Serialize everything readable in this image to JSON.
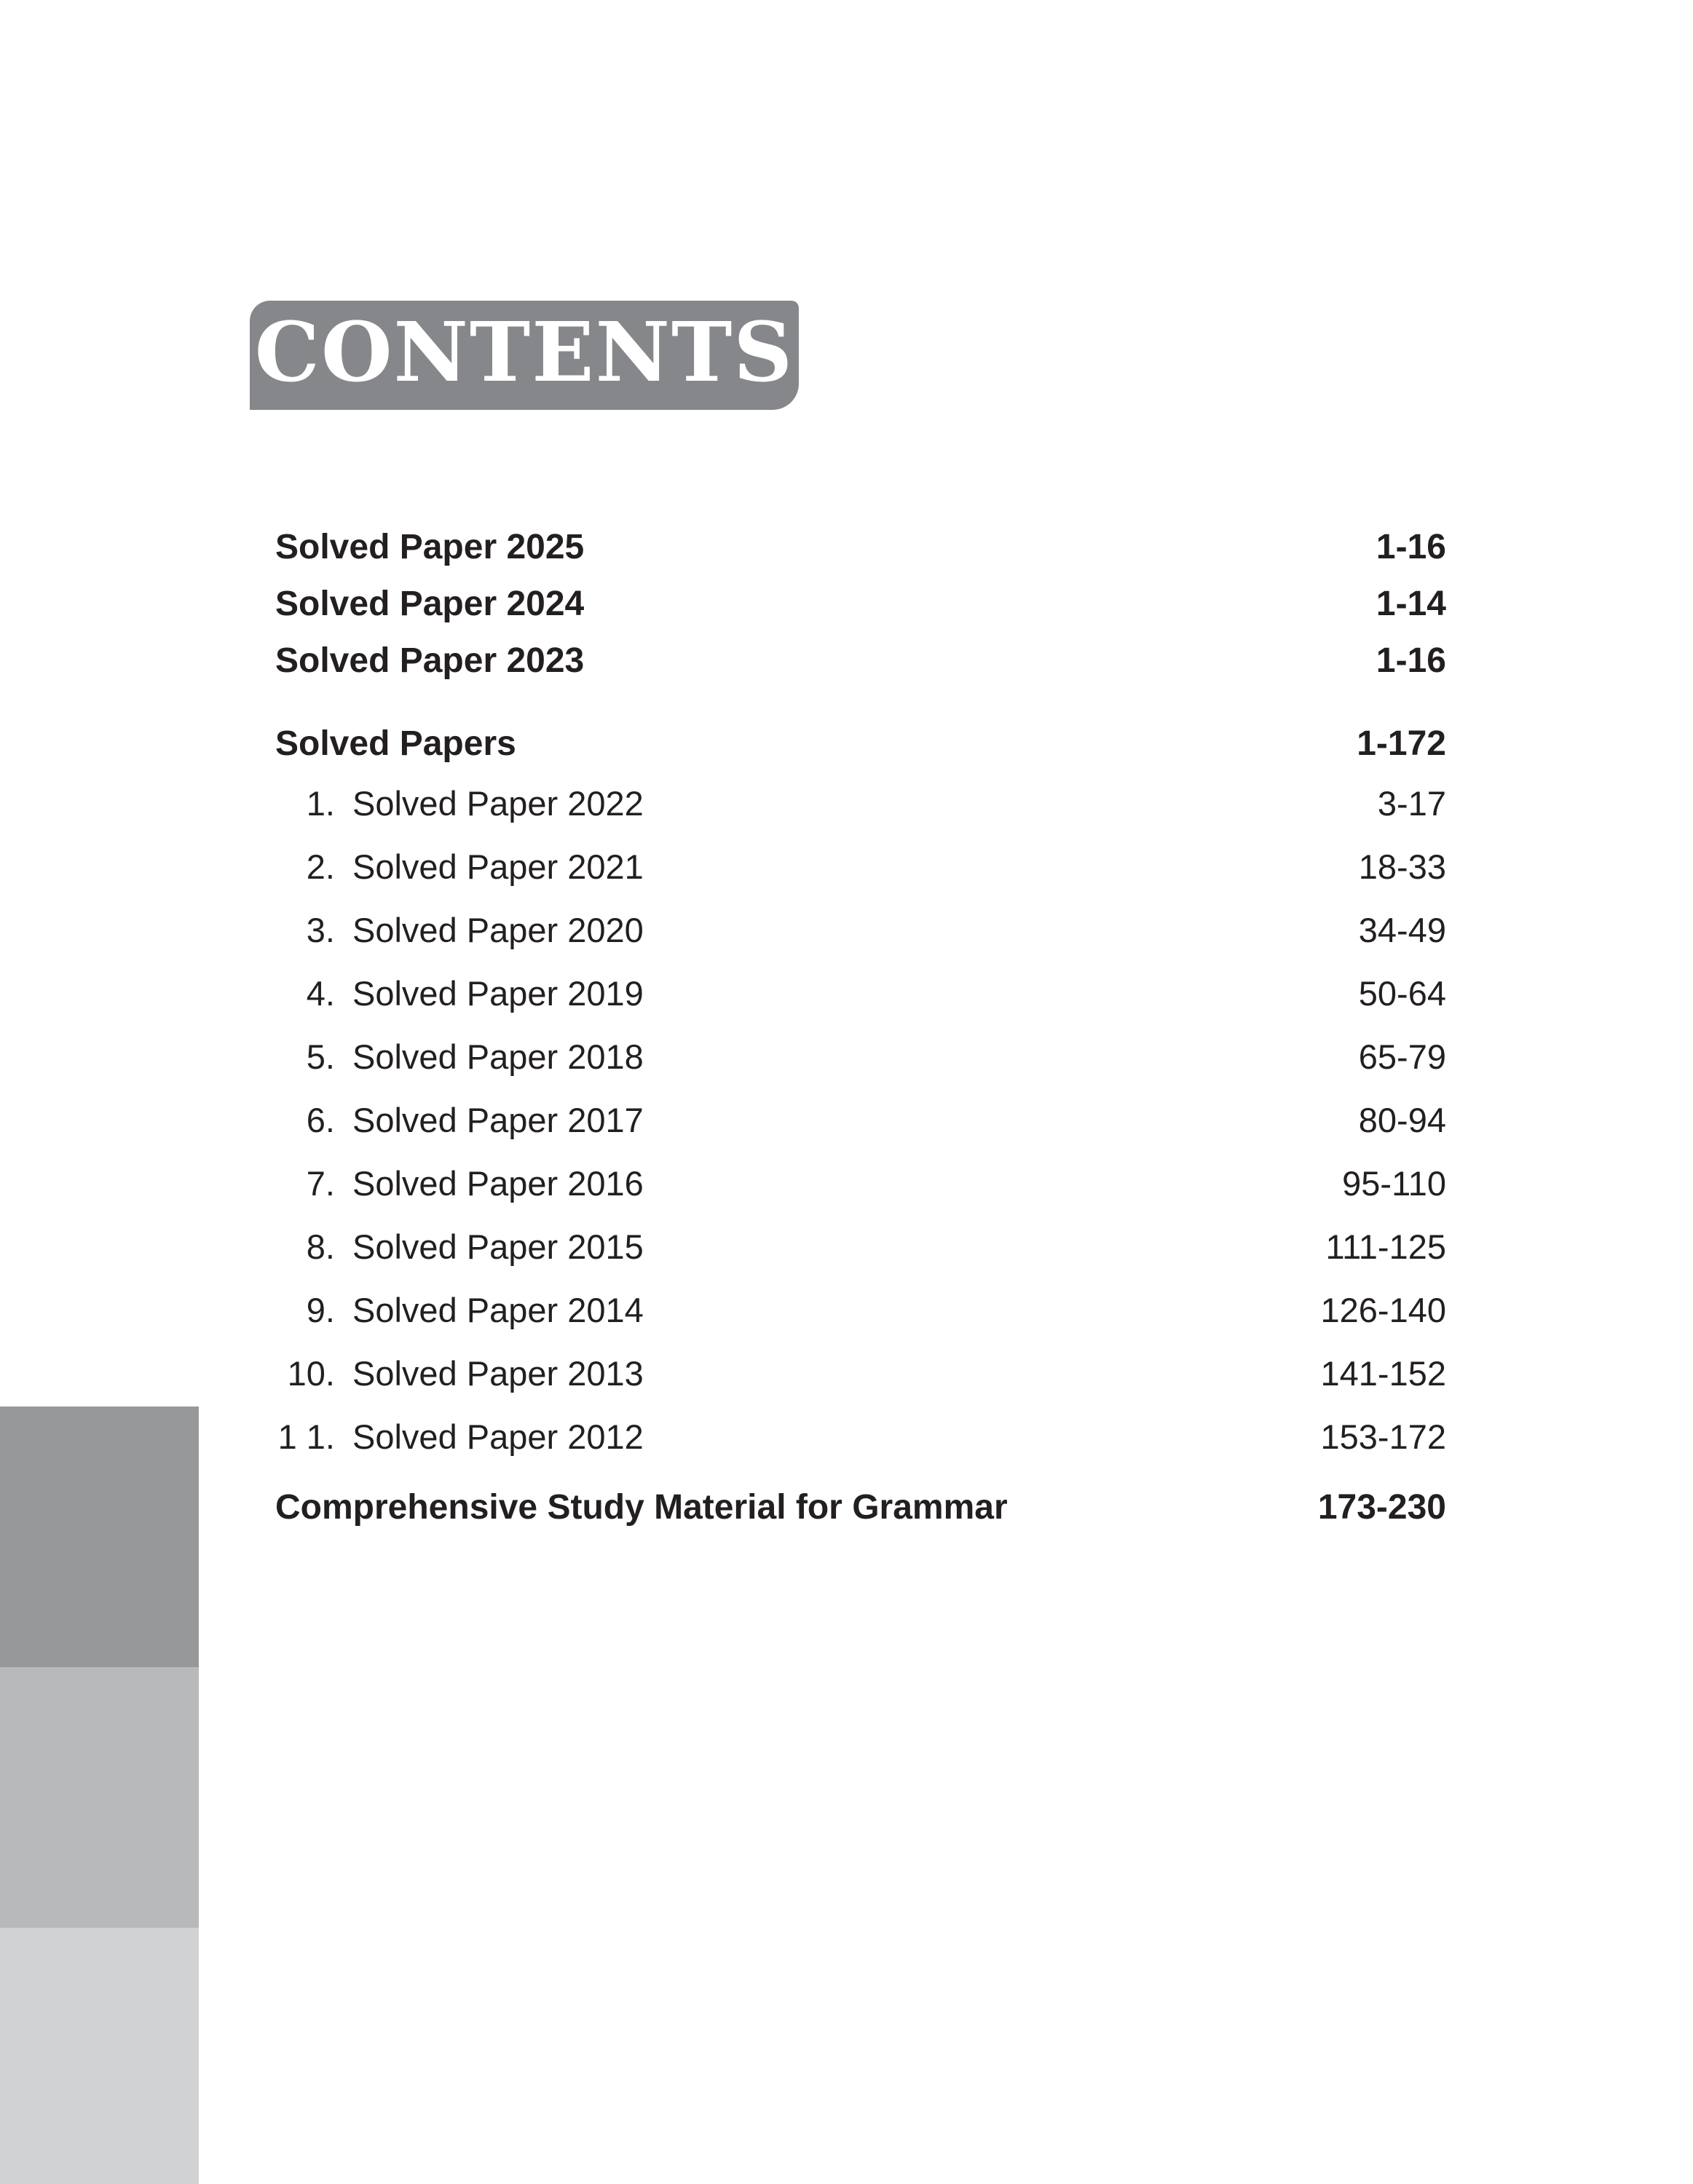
{
  "page": {
    "title": "CONTENTS"
  },
  "colors": {
    "title_box_bg": "#85878A",
    "title_text": "#FFFFFF",
    "body_text": "#231F20",
    "sidebar_dark": "#97989A",
    "sidebar_medium": "#B8B9BB",
    "sidebar_light": "#D1D2D4"
  },
  "toc": {
    "front_items": [
      {
        "label": "Solved Paper 2025",
        "pages": "1-16"
      },
      {
        "label": "Solved Paper 2024",
        "pages": "1-14"
      },
      {
        "label": "Solved Paper 2023",
        "pages": "1-16"
      }
    ],
    "section": {
      "label": "Solved Papers",
      "pages": "1-172"
    },
    "numbered_items": [
      {
        "num": "1.",
        "label": "Solved Paper 2022",
        "pages": "3-17"
      },
      {
        "num": "2.",
        "label": "Solved Paper 2021",
        "pages": "18-33"
      },
      {
        "num": "3.",
        "label": "Solved Paper 2020",
        "pages": "34-49"
      },
      {
        "num": "4.",
        "label": "Solved Paper 2019",
        "pages": "50-64"
      },
      {
        "num": "5.",
        "label": "Solved Paper 2018",
        "pages": "65-79"
      },
      {
        "num": "6.",
        "label": "Solved Paper 2017",
        "pages": "80-94"
      },
      {
        "num": "7.",
        "label": "Solved Paper 2016",
        "pages": "95-110"
      },
      {
        "num": "8.",
        "label": "Solved Paper 2015",
        "pages": "111-125"
      },
      {
        "num": "9.",
        "label": "Solved Paper 2014",
        "pages": "126-140"
      },
      {
        "num": "10.",
        "label": "Solved Paper 2013",
        "pages": "141-152"
      },
      {
        "num": "1 1.",
        "label": "Solved Paper 2012",
        "pages": "153-172"
      }
    ],
    "footer_item": {
      "label": "Comprehensive Study Material for Grammar",
      "pages": "173-230"
    }
  }
}
